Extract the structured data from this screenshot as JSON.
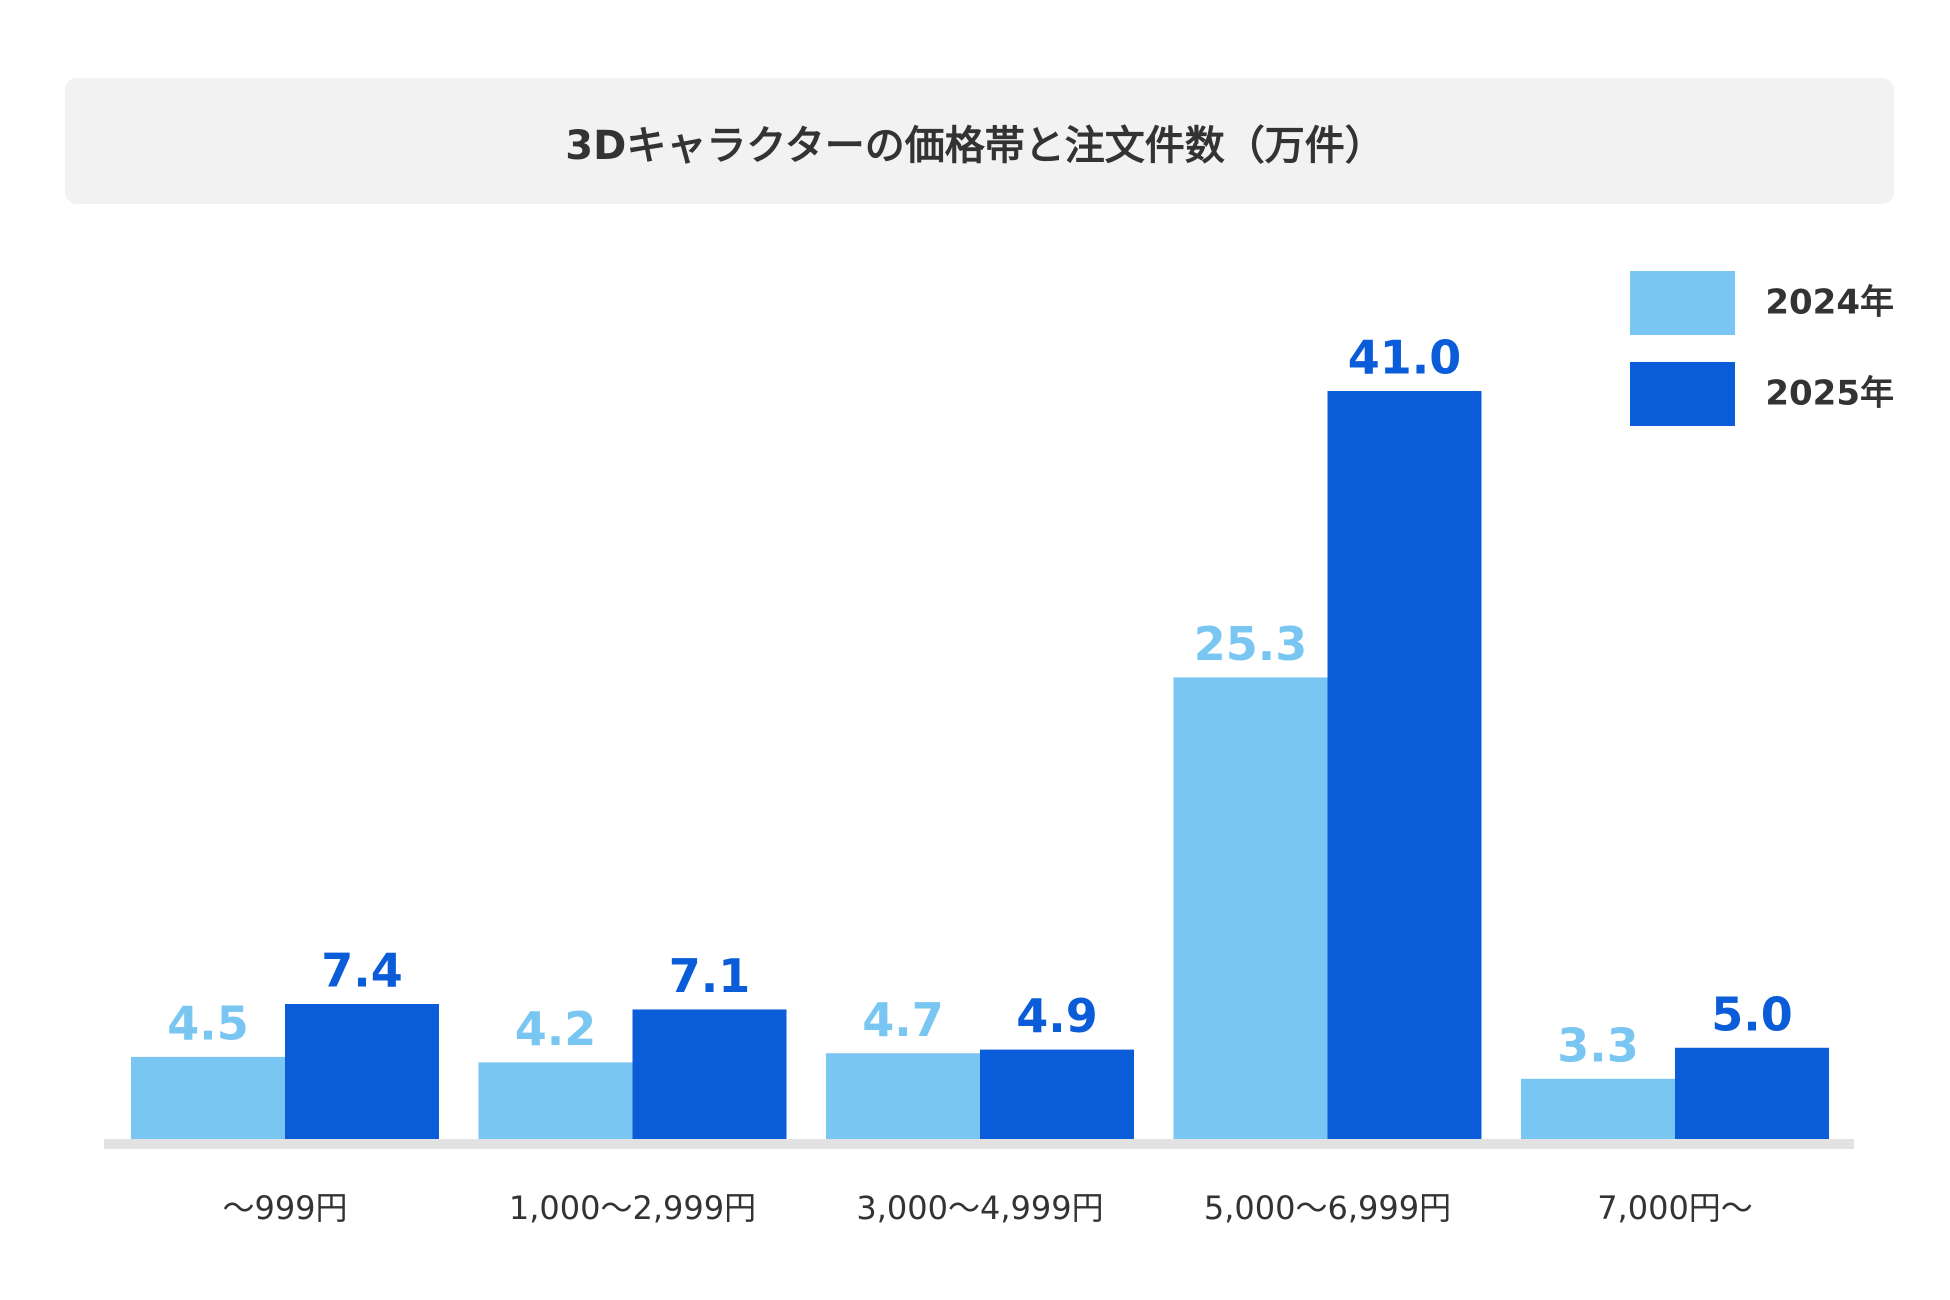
{
  "chart_data": {
    "type": "bar",
    "title": "3Dキャラクターの価格帯と注文件数（万件）",
    "categories": [
      "〜999円",
      "1,000〜2,999円",
      "3,000〜4,999円",
      "5,000〜6,999円",
      "7,000円〜"
    ],
    "series": [
      {
        "name": "2024年",
        "color": "#78c6f1",
        "values": [
          4.5,
          4.2,
          4.7,
          25.3,
          3.3
        ],
        "value_labels": [
          "4.5",
          "4.2",
          "4.7",
          "25.3",
          "3.3"
        ]
      },
      {
        "name": "2025年",
        "color": "#0a5cd8",
        "values": [
          7.4,
          7.1,
          4.9,
          41,
          5
        ],
        "value_labels": [
          "7.4",
          "7.1",
          "4.9",
          "41.0",
          "5.0"
        ]
      }
    ],
    "legend": "top-right"
  }
}
